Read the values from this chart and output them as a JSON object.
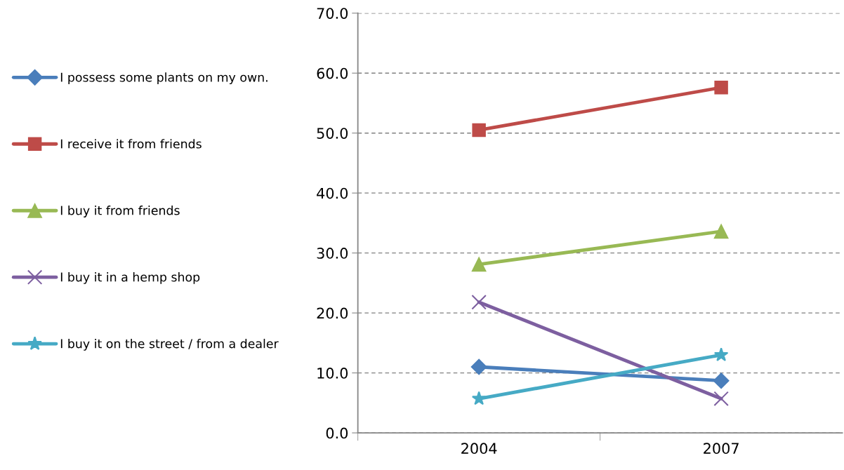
{
  "chart_data": {
    "type": "line",
    "categories": [
      "2004",
      "2007"
    ],
    "series": [
      {
        "name": "I possess some plants on my own.",
        "color": "#4a7ebb",
        "marker": "diamond",
        "values": [
          11.0,
          8.7
        ]
      },
      {
        "name": "I receive it from friends",
        "color": "#be4b48",
        "marker": "square",
        "values": [
          50.5,
          57.6
        ]
      },
      {
        "name": "I buy it from friends",
        "color": "#98b954",
        "marker": "triangle",
        "values": [
          28.1,
          33.6
        ]
      },
      {
        "name": "I buy it in a hemp shop",
        "color": "#7d5fa0",
        "marker": "cross",
        "values": [
          21.8,
          5.7
        ]
      },
      {
        "name": "I buy it on the street / from a dealer",
        "color": "#46aac5",
        "marker": "star",
        "values": [
          5.7,
          13.0
        ]
      }
    ],
    "ylim": [
      0,
      70
    ],
    "yticks": [
      {
        "value": 0,
        "label": "0.0"
      },
      {
        "value": 10,
        "label": "10.0"
      },
      {
        "value": 20,
        "label": "20.0"
      },
      {
        "value": 30,
        "label": "30.0"
      },
      {
        "value": 40,
        "label": "40.0"
      },
      {
        "value": 50,
        "label": "50.0"
      },
      {
        "value": 60,
        "label": "60.0"
      },
      {
        "value": 70,
        "label": "70.0"
      }
    ],
    "grid": "y",
    "legend": "left",
    "line_style": "solid"
  }
}
